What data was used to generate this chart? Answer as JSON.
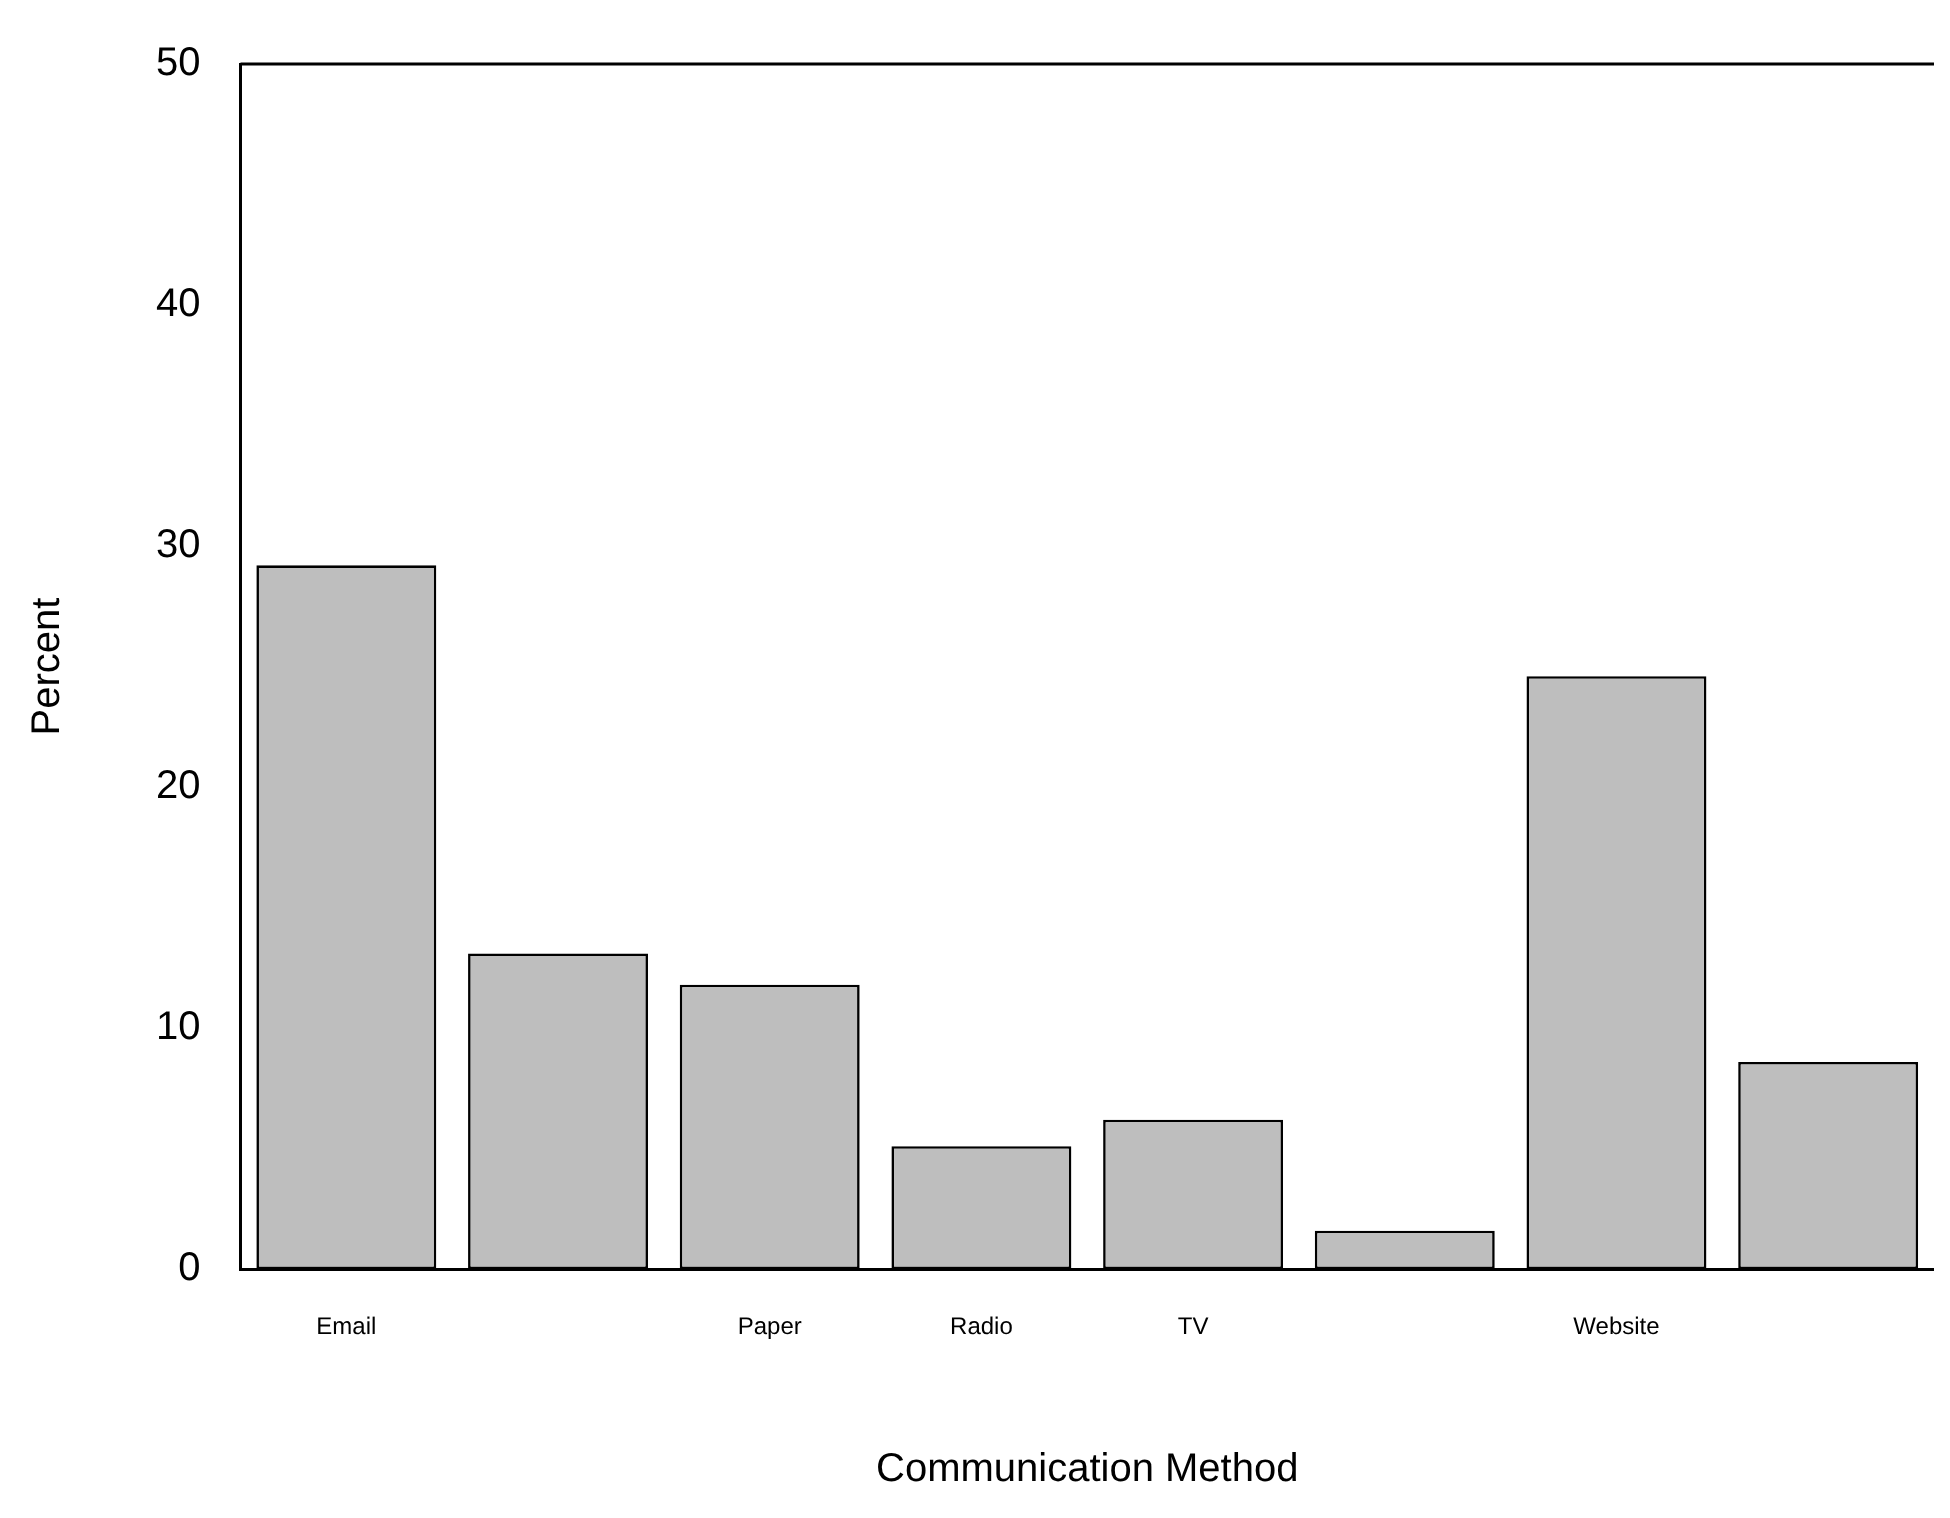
{
  "chart_data": {
    "type": "bar",
    "xlabel": "Communication Method",
    "ylabel": "Percent",
    "categories": [
      "Email",
      null,
      "Paper",
      "Radio",
      "TV",
      null,
      "Website",
      null
    ],
    "values": [
      29.2,
      13.1,
      11.8,
      5.1,
      6.2,
      1.6,
      24.6,
      8.6
    ],
    "color": "#bebebe",
    "ylim": [
      0,
      50
    ],
    "yticks": [
      0,
      10,
      20,
      30,
      40,
      50
    ],
    "grid": false,
    "legend": false
  }
}
